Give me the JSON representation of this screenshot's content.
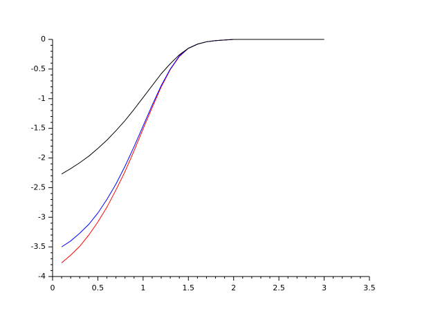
{
  "chart_data": {
    "type": "line",
    "x": [
      0.1,
      0.2,
      0.3,
      0.4,
      0.5,
      0.6,
      0.7,
      0.8,
      0.9,
      1.0,
      1.1,
      1.2,
      1.3,
      1.4,
      1.5,
      1.6,
      1.7,
      1.8,
      1.9,
      2.0,
      2.1,
      2.2,
      2.3,
      2.4,
      2.5,
      2.6,
      2.7,
      2.8,
      2.9,
      3.0
    ],
    "series": [
      {
        "color": "#000000",
        "values": [
          -2.27,
          -2.18,
          -2.08,
          -1.97,
          -1.84,
          -1.7,
          -1.54,
          -1.37,
          -1.18,
          -0.98,
          -0.78,
          -0.58,
          -0.41,
          -0.26,
          -0.15,
          -0.08,
          -0.04,
          -0.02,
          -0.01,
          0,
          0,
          0,
          0,
          0,
          0,
          0,
          0,
          0,
          0,
          0
        ]
      },
      {
        "color": "#0000ff",
        "values": [
          -3.5,
          -3.4,
          -3.27,
          -3.12,
          -2.93,
          -2.7,
          -2.44,
          -2.14,
          -1.81,
          -1.46,
          -1.11,
          -0.78,
          -0.5,
          -0.28,
          -0.15,
          -0.08,
          -0.04,
          -0.02,
          -0.01,
          0,
          0,
          0,
          0,
          0,
          0,
          0,
          0,
          0,
          0,
          0
        ]
      },
      {
        "color": "#ff0000",
        "values": [
          -3.77,
          -3.64,
          -3.49,
          -3.3,
          -3.08,
          -2.83,
          -2.54,
          -2.23,
          -1.88,
          -1.51,
          -1.15,
          -0.8,
          -0.51,
          -0.29,
          -0.15,
          -0.08,
          -0.04,
          -0.02,
          -0.01,
          0,
          0,
          0,
          0,
          0,
          0,
          0,
          0,
          0,
          0,
          0
        ]
      }
    ],
    "xlim": [
      0,
      3.5
    ],
    "xticks": [
      0,
      0.5,
      1,
      1.5,
      2,
      2.5,
      3,
      3.5
    ],
    "ylim": [
      -4,
      0
    ],
    "yticks": [
      -4,
      -3.5,
      -3,
      -2.5,
      -2,
      -1.5,
      -1,
      -0.5,
      0
    ],
    "grid": false
  }
}
